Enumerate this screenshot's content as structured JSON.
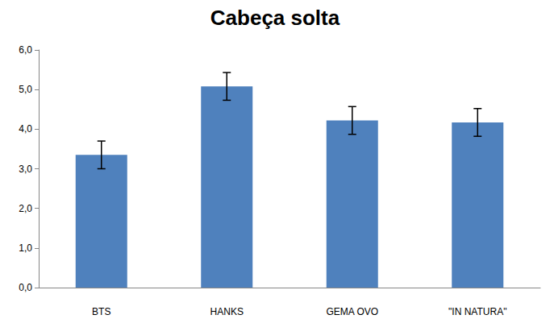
{
  "chart_data": {
    "type": "bar",
    "title": "Cabeça solta",
    "categories": [
      "BTS",
      "HANKS",
      "GEMA OVO",
      "\"IN NATURA\""
    ],
    "values": [
      3.35,
      5.08,
      4.22,
      4.17
    ],
    "errors": [
      0.35,
      0.35,
      0.35,
      0.35
    ],
    "color": "#4f81bd",
    "ylim": [
      0,
      6
    ],
    "yticks": [
      {
        "value": 0,
        "label": "0,0"
      },
      {
        "value": 1,
        "label": "1,0"
      },
      {
        "value": 2,
        "label": "2,0"
      },
      {
        "value": 3,
        "label": "3,0"
      },
      {
        "value": 4,
        "label": "4,0"
      },
      {
        "value": 5,
        "label": "5,0"
      },
      {
        "value": 6,
        "label": "6,0"
      }
    ],
    "grid": false
  }
}
